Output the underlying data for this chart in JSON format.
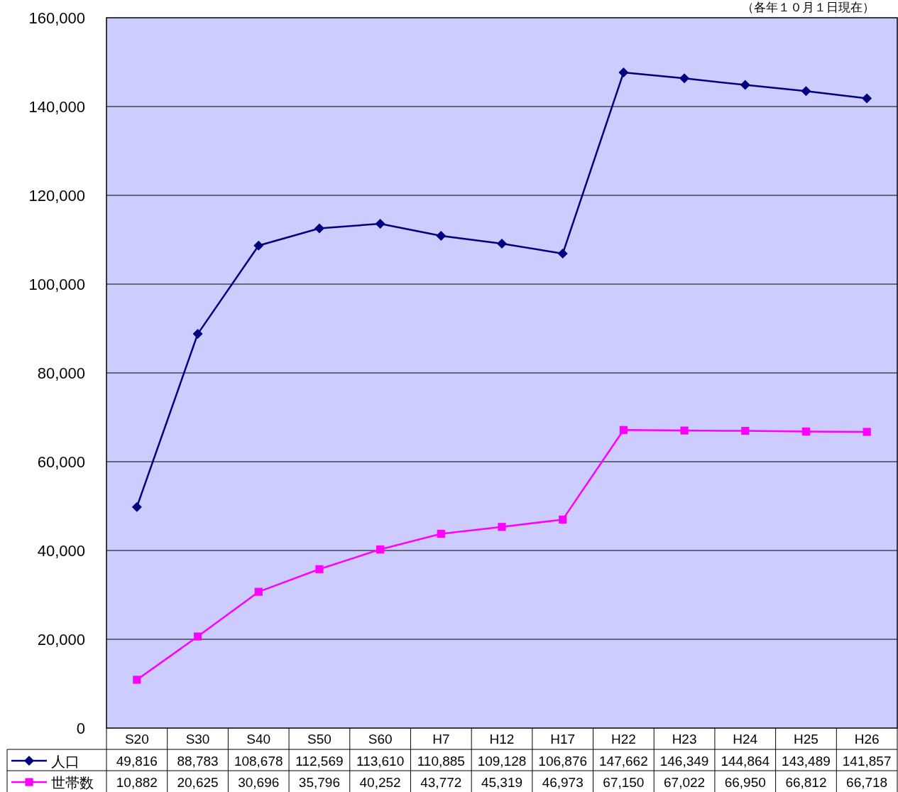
{
  "chart_data": {
    "type": "line",
    "annotations": [
      "（各年１０月１日現在）"
    ],
    "categories": [
      "S20",
      "S30",
      "S40",
      "S50",
      "S60",
      "H7",
      "H12",
      "H17",
      "H22",
      "H23",
      "H24",
      "H25",
      "H26"
    ],
    "series": [
      {
        "name": "人口",
        "color": "#000080",
        "marker": "diamond",
        "values": [
          49816,
          88783,
          108678,
          112569,
          113610,
          110885,
          109128,
          106876,
          147662,
          146349,
          144864,
          143489,
          141857
        ],
        "value_labels": [
          "49,816",
          "88,783",
          "108,678",
          "112,569",
          "113,610",
          "110,885",
          "109,128",
          "106,876",
          "147,662",
          "146,349",
          "144,864",
          "143,489",
          "141,857"
        ]
      },
      {
        "name": "世帯数",
        "color": "#ff00ff",
        "marker": "square",
        "values": [
          10882,
          20625,
          30696,
          35796,
          40252,
          43772,
          45319,
          46973,
          67150,
          67022,
          66950,
          66812,
          66718
        ],
        "value_labels": [
          "10,882",
          "20,625",
          "30,696",
          "35,796",
          "40,252",
          "43,772",
          "45,319",
          "46,973",
          "67,150",
          "67,022",
          "66,950",
          "66,812",
          "66,718"
        ]
      }
    ],
    "ylim": [
      0,
      160000
    ],
    "yticks": [
      {
        "value": 0,
        "label": "0"
      },
      {
        "value": 20000,
        "label": "20,000"
      },
      {
        "value": 40000,
        "label": "40,000"
      },
      {
        "value": 60000,
        "label": "60,000"
      },
      {
        "value": 80000,
        "label": "80,000"
      },
      {
        "value": 100000,
        "label": "100,000"
      },
      {
        "value": 120000,
        "label": "120,000"
      },
      {
        "value": 140000,
        "label": "140,000"
      },
      {
        "value": 160000,
        "label": "160,000"
      }
    ],
    "grid": "y",
    "legend": "bottom left",
    "line_style": "solid"
  }
}
